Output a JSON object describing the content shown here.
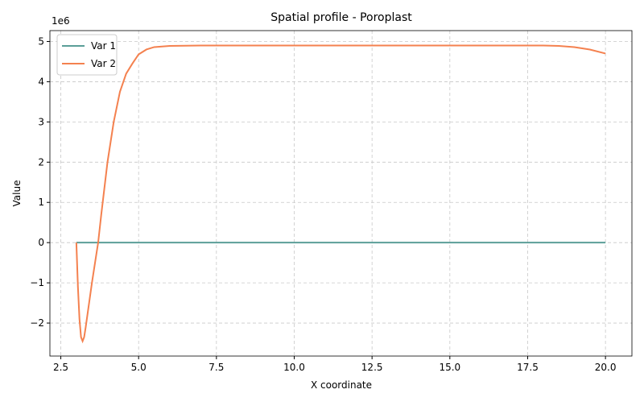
{
  "chart_data": {
    "type": "line",
    "title": "Spatial profile - Poroplast",
    "xlabel": "X coordinate",
    "ylabel": "Value",
    "y_offset_label": "1e6",
    "x": [
      3.0,
      3.05,
      3.1,
      3.15,
      3.2,
      3.25,
      3.3,
      3.4,
      3.5,
      3.6,
      3.7,
      3.8,
      3.9,
      4.0,
      4.2,
      4.4,
      4.6,
      4.8,
      5.0,
      5.25,
      5.5,
      6.0,
      7,
      8,
      9,
      10,
      11,
      12,
      13,
      14,
      15,
      16,
      17,
      18,
      18.5,
      19,
      19.5,
      20
    ],
    "series": [
      {
        "name": "Var 1",
        "color": "#5b9e98",
        "values": [
          0,
          0,
          0,
          0,
          0,
          0,
          0,
          0,
          0,
          0,
          0,
          0,
          0,
          0,
          0,
          0,
          0,
          0,
          0,
          0,
          0,
          0,
          0,
          0,
          0,
          0,
          0,
          0,
          0,
          0,
          0,
          0,
          0,
          0,
          0,
          0,
          0,
          0
        ]
      },
      {
        "name": "Var 2",
        "color": "#f4814f",
        "values": [
          0,
          -1.1,
          -1.9,
          -2.35,
          -2.45,
          -2.35,
          -2.1,
          -1.55,
          -1.0,
          -0.5,
          0.0,
          0.7,
          1.35,
          2.0,
          3.0,
          3.75,
          4.2,
          4.45,
          4.68,
          4.8,
          4.86,
          4.89,
          4.9,
          4.9,
          4.9,
          4.9,
          4.9,
          4.9,
          4.9,
          4.9,
          4.9,
          4.9,
          4.9,
          4.9,
          4.89,
          4.86,
          4.8,
          4.7
        ]
      }
    ],
    "xlim": [
      2.15,
      20.85
    ],
    "ylim": [
      -2.82,
      5.27
    ],
    "xticks": [
      2.5,
      {
        "value": 5,
        "label": "5.0"
      },
      7.5,
      {
        "value": 10,
        "label": "10.0"
      },
      12.5,
      {
        "value": 15,
        "label": "15.0"
      },
      17.5,
      {
        "value": 20,
        "label": "20.0"
      }
    ],
    "yticks": [
      {
        "value": -2,
        "label": "−2"
      },
      {
        "value": -1,
        "label": "−1"
      },
      0,
      1,
      2,
      3,
      4,
      5
    ],
    "grid": true,
    "legend": "upper-left"
  }
}
